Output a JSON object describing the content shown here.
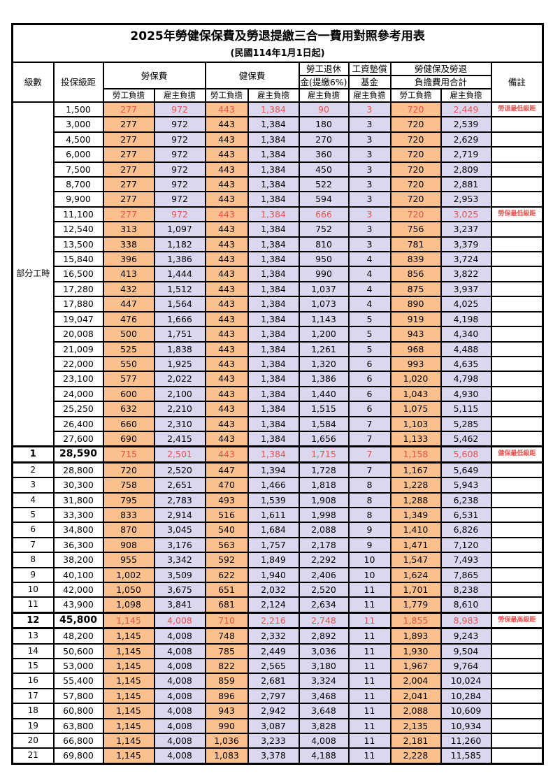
{
  "title": "2025年勞健保保費及勞退提繳三合一費用對照參考用表",
  "subtitle": "(民國114年1月1日起)",
  "header": {
    "level": "級數",
    "bracket": "投保級距",
    "labor_fee": "勞保費",
    "health_fee": "健保費",
    "pension_line1": "勞工退休",
    "pension_line2": "金(提繳6%)",
    "wage_fund_line1": "工資墊償",
    "wage_fund_line2": "基金",
    "total_line1": "勞健保及勞退",
    "total_line2": "負擔費用合計",
    "note": "備註",
    "employee": "勞工負擔",
    "employer": "雇主負擔"
  },
  "part_time_label": "部分工時",
  "part_time_rowspan": 23,
  "colors": {
    "employee_bg": "#FAC08D",
    "employer_bg": "#DBD7EF",
    "highlight_text": "#E8524E",
    "grid": "#000000"
  },
  "rows": [
    {
      "level": "",
      "bracket": "1,500",
      "v": [
        "277",
        "972",
        "443",
        "1,384",
        "90",
        "3",
        "720",
        "2,449"
      ],
      "note": "勞退最低級距",
      "red": true,
      "em": false
    },
    {
      "level": "",
      "bracket": "3,000",
      "v": [
        "277",
        "972",
        "443",
        "1,384",
        "180",
        "3",
        "720",
        "2,539"
      ],
      "note": "",
      "red": false,
      "em": false
    },
    {
      "level": "",
      "bracket": "4,500",
      "v": [
        "277",
        "972",
        "443",
        "1,384",
        "270",
        "3",
        "720",
        "2,629"
      ],
      "note": "",
      "red": false,
      "em": false
    },
    {
      "level": "",
      "bracket": "6,000",
      "v": [
        "277",
        "972",
        "443",
        "1,384",
        "360",
        "3",
        "720",
        "2,719"
      ],
      "note": "",
      "red": false,
      "em": false
    },
    {
      "level": "",
      "bracket": "7,500",
      "v": [
        "277",
        "972",
        "443",
        "1,384",
        "450",
        "3",
        "720",
        "2,809"
      ],
      "note": "",
      "red": false,
      "em": false
    },
    {
      "level": "",
      "bracket": "8,700",
      "v": [
        "277",
        "972",
        "443",
        "1,384",
        "522",
        "3",
        "720",
        "2,881"
      ],
      "note": "",
      "red": false,
      "em": false
    },
    {
      "level": "",
      "bracket": "9,900",
      "v": [
        "277",
        "972",
        "443",
        "1,384",
        "594",
        "3",
        "720",
        "2,953"
      ],
      "note": "",
      "red": false,
      "em": false
    },
    {
      "level": "",
      "bracket": "11,100",
      "v": [
        "277",
        "972",
        "443",
        "1,384",
        "666",
        "3",
        "720",
        "3,025"
      ],
      "note": "勞保最低級距",
      "red": true,
      "em": false
    },
    {
      "level": "",
      "bracket": "12,540",
      "v": [
        "313",
        "1,097",
        "443",
        "1,384",
        "752",
        "3",
        "756",
        "3,237"
      ],
      "note": "",
      "red": false,
      "em": false
    },
    {
      "level": "",
      "bracket": "13,500",
      "v": [
        "338",
        "1,182",
        "443",
        "1,384",
        "810",
        "3",
        "781",
        "3,379"
      ],
      "note": "",
      "red": false,
      "em": false
    },
    {
      "level": "",
      "bracket": "15,840",
      "v": [
        "396",
        "1,386",
        "443",
        "1,384",
        "950",
        "4",
        "839",
        "3,724"
      ],
      "note": "",
      "red": false,
      "em": false
    },
    {
      "level": "",
      "bracket": "16,500",
      "v": [
        "413",
        "1,444",
        "443",
        "1,384",
        "990",
        "4",
        "856",
        "3,822"
      ],
      "note": "",
      "red": false,
      "em": false
    },
    {
      "level": "",
      "bracket": "17,280",
      "v": [
        "432",
        "1,512",
        "443",
        "1,384",
        "1,037",
        "4",
        "875",
        "3,937"
      ],
      "note": "",
      "red": false,
      "em": false
    },
    {
      "level": "",
      "bracket": "17,880",
      "v": [
        "447",
        "1,564",
        "443",
        "1,384",
        "1,073",
        "4",
        "890",
        "4,025"
      ],
      "note": "",
      "red": false,
      "em": false
    },
    {
      "level": "",
      "bracket": "19,047",
      "v": [
        "476",
        "1,666",
        "443",
        "1,384",
        "1,143",
        "5",
        "919",
        "4,198"
      ],
      "note": "",
      "red": false,
      "em": false
    },
    {
      "level": "",
      "bracket": "20,008",
      "v": [
        "500",
        "1,751",
        "443",
        "1,384",
        "1,200",
        "5",
        "943",
        "4,340"
      ],
      "note": "",
      "red": false,
      "em": false
    },
    {
      "level": "",
      "bracket": "21,009",
      "v": [
        "525",
        "1,838",
        "443",
        "1,384",
        "1,261",
        "5",
        "968",
        "4,488"
      ],
      "note": "",
      "red": false,
      "em": false
    },
    {
      "level": "",
      "bracket": "22,000",
      "v": [
        "550",
        "1,925",
        "443",
        "1,384",
        "1,320",
        "6",
        "993",
        "4,635"
      ],
      "note": "",
      "red": false,
      "em": false
    },
    {
      "level": "",
      "bracket": "23,100",
      "v": [
        "577",
        "2,022",
        "443",
        "1,384",
        "1,386",
        "6",
        "1,020",
        "4,798"
      ],
      "note": "",
      "red": false,
      "em": false
    },
    {
      "level": "",
      "bracket": "24,000",
      "v": [
        "600",
        "2,100",
        "443",
        "1,384",
        "1,440",
        "6",
        "1,043",
        "4,930"
      ],
      "note": "",
      "red": false,
      "em": false
    },
    {
      "level": "",
      "bracket": "25,250",
      "v": [
        "632",
        "2,210",
        "443",
        "1,384",
        "1,515",
        "6",
        "1,075",
        "5,115"
      ],
      "note": "",
      "red": false,
      "em": false
    },
    {
      "level": "",
      "bracket": "26,400",
      "v": [
        "660",
        "2,310",
        "443",
        "1,384",
        "1,584",
        "7",
        "1,103",
        "5,285"
      ],
      "note": "",
      "red": false,
      "em": false
    },
    {
      "level": "",
      "bracket": "27,600",
      "v": [
        "690",
        "2,415",
        "443",
        "1,384",
        "1,656",
        "7",
        "1,133",
        "5,462"
      ],
      "note": "",
      "red": false,
      "em": false
    },
    {
      "level": "1",
      "bracket": "28,590",
      "v": [
        "715",
        "2,501",
        "443",
        "1,384",
        "1,715",
        "7",
        "1,158",
        "5,608"
      ],
      "note": "健保最低級距",
      "red": true,
      "em": true
    },
    {
      "level": "2",
      "bracket": "28,800",
      "v": [
        "720",
        "2,520",
        "447",
        "1,394",
        "1,728",
        "7",
        "1,167",
        "5,649"
      ],
      "note": "",
      "red": false,
      "em": false
    },
    {
      "level": "3",
      "bracket": "30,300",
      "v": [
        "758",
        "2,651",
        "470",
        "1,466",
        "1,818",
        "8",
        "1,228",
        "5,943"
      ],
      "note": "",
      "red": false,
      "em": false
    },
    {
      "level": "4",
      "bracket": "31,800",
      "v": [
        "795",
        "2,783",
        "493",
        "1,539",
        "1,908",
        "8",
        "1,288",
        "6,238"
      ],
      "note": "",
      "red": false,
      "em": false
    },
    {
      "level": "5",
      "bracket": "33,300",
      "v": [
        "833",
        "2,914",
        "516",
        "1,611",
        "1,998",
        "8",
        "1,349",
        "6,531"
      ],
      "note": "",
      "red": false,
      "em": false
    },
    {
      "level": "6",
      "bracket": "34,800",
      "v": [
        "870",
        "3,045",
        "540",
        "1,684",
        "2,088",
        "9",
        "1,410",
        "6,826"
      ],
      "note": "",
      "red": false,
      "em": false
    },
    {
      "level": "7",
      "bracket": "36,300",
      "v": [
        "908",
        "3,176",
        "563",
        "1,757",
        "2,178",
        "9",
        "1,471",
        "7,120"
      ],
      "note": "",
      "red": false,
      "em": false
    },
    {
      "level": "8",
      "bracket": "38,200",
      "v": [
        "955",
        "3,342",
        "592",
        "1,849",
        "2,292",
        "10",
        "1,547",
        "7,493"
      ],
      "note": "",
      "red": false,
      "em": false
    },
    {
      "level": "9",
      "bracket": "40,100",
      "v": [
        "1,002",
        "3,509",
        "622",
        "1,940",
        "2,406",
        "10",
        "1,624",
        "7,865"
      ],
      "note": "",
      "red": false,
      "em": false
    },
    {
      "level": "10",
      "bracket": "42,000",
      "v": [
        "1,050",
        "3,675",
        "651",
        "2,032",
        "2,520",
        "11",
        "1,701",
        "8,238"
      ],
      "note": "",
      "red": false,
      "em": false
    },
    {
      "level": "11",
      "bracket": "43,900",
      "v": [
        "1,098",
        "3,841",
        "681",
        "2,124",
        "2,634",
        "11",
        "1,779",
        "8,610"
      ],
      "note": "",
      "red": false,
      "em": false
    },
    {
      "level": "12",
      "bracket": "45,800",
      "v": [
        "1,145",
        "4,008",
        "710",
        "2,216",
        "2,748",
        "11",
        "1,855",
        "8,983"
      ],
      "note": "勞保最高級距",
      "red": true,
      "em": true
    },
    {
      "level": "13",
      "bracket": "48,200",
      "v": [
        "1,145",
        "4,008",
        "748",
        "2,332",
        "2,892",
        "11",
        "1,893",
        "9,243"
      ],
      "note": "",
      "red": false,
      "em": false
    },
    {
      "level": "14",
      "bracket": "50,600",
      "v": [
        "1,145",
        "4,008",
        "785",
        "2,449",
        "3,036",
        "11",
        "1,930",
        "9,504"
      ],
      "note": "",
      "red": false,
      "em": false
    },
    {
      "level": "15",
      "bracket": "53,000",
      "v": [
        "1,145",
        "4,008",
        "822",
        "2,565",
        "3,180",
        "11",
        "1,967",
        "9,764"
      ],
      "note": "",
      "red": false,
      "em": false
    },
    {
      "level": "16",
      "bracket": "55,400",
      "v": [
        "1,145",
        "4,008",
        "859",
        "2,681",
        "3,324",
        "11",
        "2,004",
        "10,024"
      ],
      "note": "",
      "red": false,
      "em": false
    },
    {
      "level": "17",
      "bracket": "57,800",
      "v": [
        "1,145",
        "4,008",
        "896",
        "2,797",
        "3,468",
        "11",
        "2,041",
        "10,284"
      ],
      "note": "",
      "red": false,
      "em": false
    },
    {
      "level": "18",
      "bracket": "60,800",
      "v": [
        "1,145",
        "4,008",
        "943",
        "2,942",
        "3,648",
        "11",
        "2,088",
        "10,609"
      ],
      "note": "",
      "red": false,
      "em": false
    },
    {
      "level": "19",
      "bracket": "63,800",
      "v": [
        "1,145",
        "4,008",
        "990",
        "3,087",
        "3,828",
        "11",
        "2,135",
        "10,934"
      ],
      "note": "",
      "red": false,
      "em": false
    },
    {
      "level": "20",
      "bracket": "66,800",
      "v": [
        "1,145",
        "4,008",
        "1,036",
        "3,233",
        "4,008",
        "11",
        "2,181",
        "11,260"
      ],
      "note": "",
      "red": false,
      "em": false
    },
    {
      "level": "21",
      "bracket": "69,800",
      "v": [
        "1,145",
        "4,008",
        "1,083",
        "3,378",
        "4,188",
        "11",
        "2,228",
        "11,585"
      ],
      "note": "",
      "red": false,
      "em": false
    }
  ]
}
